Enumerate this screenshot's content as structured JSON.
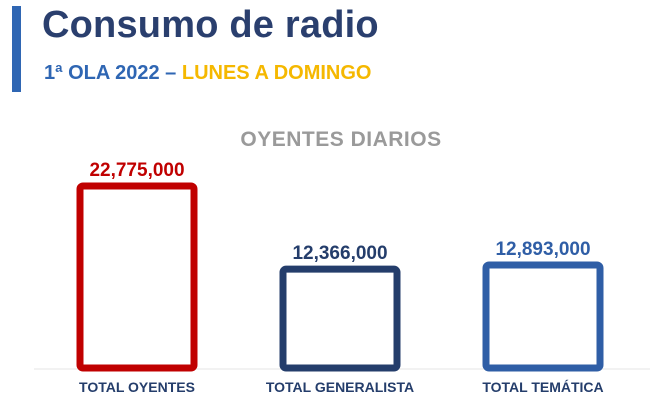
{
  "header": {
    "title": "Consumo de radio",
    "subtitle_part1": "1ª OLA 2022 –",
    "subtitle_part2": "LUNES A DOMINGO"
  },
  "colors": {
    "accent": "#2f66b3",
    "title": "#2a3f6e",
    "highlight": "#f5b800",
    "chart_title": "#9a9a9a"
  },
  "chart_data": {
    "type": "bar",
    "title": "OYENTES DIARIOS",
    "categories": [
      "TOTAL OYENTES",
      "TOTAL GENERALISTA",
      "TOTAL TEMÁTICA"
    ],
    "values": [
      22775000,
      12366000,
      12893000
    ],
    "value_labels": [
      "22,775,000",
      "12,366,000",
      "12,893,000"
    ],
    "bar_colors": [
      "#c00000",
      "#243d6b",
      "#2f5ea6"
    ],
    "ylim": [
      0,
      22775000
    ],
    "grid": false,
    "legend": "none"
  }
}
